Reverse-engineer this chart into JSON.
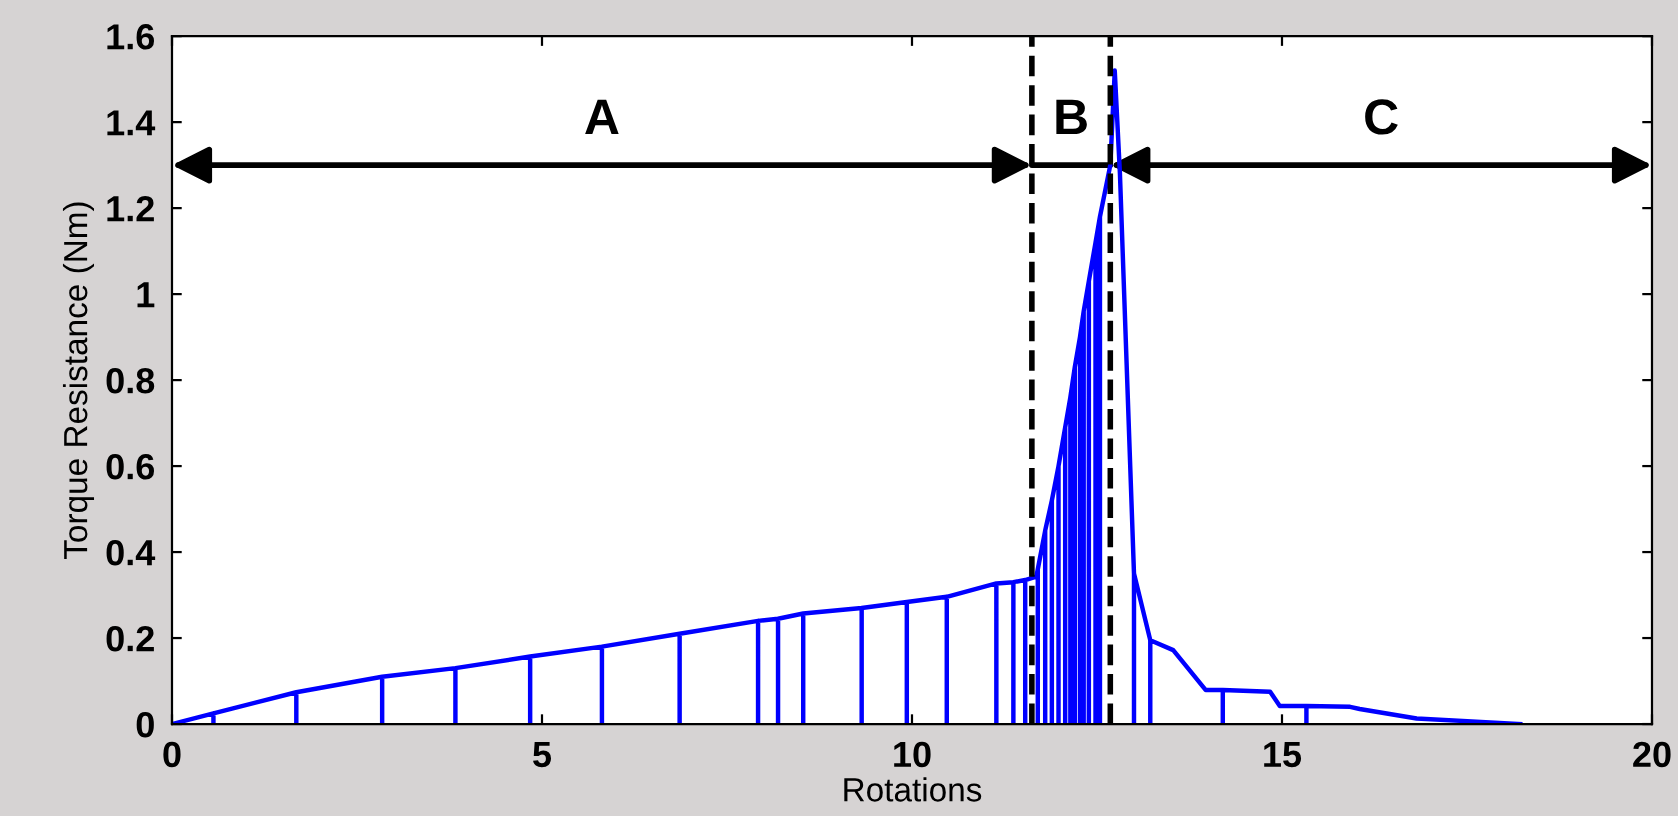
{
  "chart_data": {
    "type": "line",
    "xlabel": "Rotations",
    "ylabel": "Torque Resistance (Nm)",
    "xlim": [
      0,
      20
    ],
    "ylim": [
      0,
      1.6
    ],
    "xticks": [
      0,
      5,
      10,
      15,
      20
    ],
    "yticks": [
      0,
      0.2,
      0.4,
      0.6,
      0.8,
      1,
      1.2,
      1.4,
      1.6
    ],
    "grid": false,
    "legend": false,
    "marker": "none",
    "line_style": "solid",
    "series": [
      {
        "color": "#0000ff",
        "x": [
          0,
          0.56,
          0.56,
          0.56,
          1.68,
          1.68,
          1.68,
          2.84,
          2.84,
          2.84,
          3.83,
          3.83,
          3.83,
          4.84,
          4.84,
          4.84,
          5.81,
          5.81,
          5.81,
          6.86,
          6.86,
          6.86,
          7.92,
          7.92,
          7.92,
          8.19,
          8.19,
          8.19,
          8.53,
          8.53,
          8.53,
          9.32,
          9.32,
          9.32,
          9.93,
          9.93,
          9.93,
          10.47,
          10.47,
          10.47,
          11.14,
          11.14,
          11.14,
          11.37,
          11.37,
          11.37,
          11.53,
          11.53,
          11.53,
          11.68,
          11.7,
          11.7,
          11.7,
          11.8,
          11.8,
          11.8,
          11.89,
          11.89,
          11.89,
          11.98,
          11.98,
          11.98,
          12.07,
          12.07,
          12.07,
          12.14,
          12.14,
          12.14,
          12.2,
          12.2,
          12.2,
          12.27,
          12.27,
          12.27,
          12.32,
          12.32,
          12.32,
          12.39,
          12.39,
          12.39,
          12.48,
          12.48,
          12.48,
          12.54,
          12.54,
          12.54,
          12.68,
          12.74,
          12.81,
          13.0,
          13.0,
          13.0,
          13.22,
          13.22,
          13.22,
          13.53,
          13.97,
          14.2,
          14.2,
          14.2,
          14.84,
          14.97,
          15.33,
          15.33,
          15.33,
          15.92,
          16.05,
          16.82,
          16.82,
          18.22
        ],
        "values": [
          0,
          0.025,
          0,
          0.025,
          0.074,
          0,
          0.074,
          0.11,
          0,
          0.11,
          0.13,
          0,
          0.13,
          0.157,
          0,
          0.157,
          0.18,
          0,
          0.18,
          0.21,
          0,
          0.21,
          0.24,
          0,
          0.24,
          0.245,
          0,
          0.245,
          0.257,
          0,
          0.257,
          0.27,
          0,
          0.27,
          0.284,
          0,
          0.284,
          0.296,
          0,
          0.296,
          0.327,
          0,
          0.327,
          0.33,
          0,
          0.33,
          0.335,
          0,
          0.335,
          0.343,
          0.36,
          0,
          0.36,
          0.45,
          0,
          0.45,
          0.52,
          0,
          0.52,
          0.6,
          0,
          0.6,
          0.69,
          0,
          0.69,
          0.76,
          0,
          0.76,
          0.83,
          0,
          0.83,
          0.9,
          0,
          0.9,
          0.96,
          0,
          0.96,
          1.03,
          0,
          1.03,
          1.12,
          0,
          1.12,
          1.18,
          0,
          1.18,
          1.3,
          1.52,
          1.28,
          0.35,
          0,
          0.35,
          0.195,
          0,
          0.195,
          0.172,
          0.079,
          0.079,
          0,
          0.079,
          0.075,
          0.042,
          0.042,
          0,
          0.042,
          0.04,
          0.035,
          0.013,
          0.013,
          0
        ]
      }
    ],
    "ref_lines": [
      {
        "axis": "x",
        "value": 11.62,
        "color": "#000000",
        "line_style": "dashed"
      },
      {
        "axis": "x",
        "value": 12.68,
        "color": "#000000",
        "line_style": "dashed"
      }
    ],
    "annotations": [
      "A",
      "B",
      "C"
    ]
  }
}
